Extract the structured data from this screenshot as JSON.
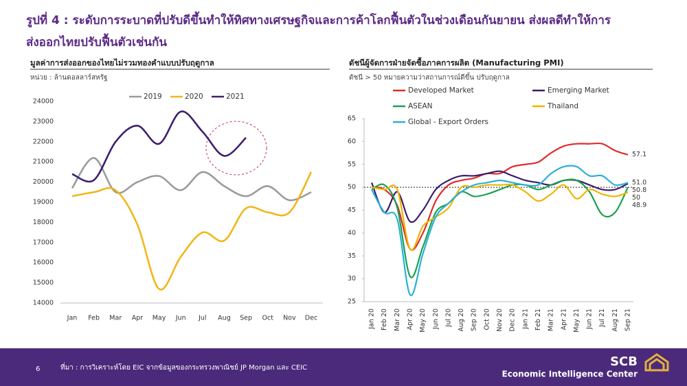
{
  "header": {
    "title_lines": [
      "รูปที่ 4 : ระดับการระบาดที่ปรับดีขึ้นทำให้ทิศทางเศรษฐกิจและการค้าโลกฟื้นตัวในช่วงเดือนกันยายน ส่งผลดีทำให้การ",
      "ส่งออกไทยปรับฟื้นตัวเช่นกัน"
    ]
  },
  "chart_data": [
    {
      "type": "line",
      "smooth": true,
      "legend": "top",
      "title": "มูลค่าการส่งออกของไทยไม่รวมทองคำแบบปรับฤดูกาล",
      "subtitle": "หน่วย : ล้านดอลลาร์สหรัฐ",
      "categories": [
        "Jan",
        "Feb",
        "Mar",
        "Apr",
        "May",
        "Jun",
        "Jul",
        "Aug",
        "Sep",
        "Oct",
        "Nov",
        "Dec"
      ],
      "ylim": [
        14000,
        24000
      ],
      "yticks": [
        14000,
        15000,
        16000,
        17000,
        18000,
        19000,
        20000,
        21000,
        22000,
        23000,
        24000
      ],
      "series": [
        {
          "name": "2019",
          "color": "#9b9b9b",
          "values": [
            19700,
            21200,
            19500,
            20000,
            20300,
            19600,
            20500,
            19800,
            19300,
            19800,
            19100,
            19500
          ]
        },
        {
          "name": "2020",
          "color": "#f2b619",
          "values": [
            19300,
            19500,
            19600,
            17900,
            14700,
            16300,
            17500,
            17100,
            18700,
            18500,
            18500,
            20500
          ]
        },
        {
          "name": "2021",
          "color": "#3d1f6e",
          "values": [
            20400,
            20100,
            22000,
            22800,
            21900,
            23500,
            22500,
            21300,
            22200,
            null,
            null,
            null
          ]
        }
      ]
    },
    {
      "type": "line",
      "smooth": true,
      "legend": "top",
      "title": "ดัชนีผู้จัดการฝ่ายจัดซื้อภาคการผลิต (Manufacturing PMI)",
      "subtitle": "ดัชนี > 50 หมายความว่าสถานการณ์ดีขึ้น ปรับฤดูกาล",
      "categories": [
        "Jan 20",
        "Feb 20",
        "Mar 20",
        "Apr 20",
        "May 20",
        "Jun 20",
        "Jul 20",
        "Aug 20",
        "Sep 20",
        "Oct 20",
        "Nov 20",
        "Dec 20",
        "Jan 21",
        "Feb 21",
        "Mar 21",
        "Apr 21",
        "May 21",
        "Jun 21",
        "Jul 21",
        "Aug 21",
        "Sep 21"
      ],
      "ylim": [
        25,
        65
      ],
      "yticks": [
        25,
        30,
        35,
        40,
        45,
        50,
        55,
        60,
        65
      ],
      "reference_line": 50,
      "series": [
        {
          "name": "Developed Market",
          "color": "#e02b2b",
          "values": [
            50,
            49.5,
            46,
            36.5,
            40,
            47,
            50.5,
            51.5,
            52,
            53,
            53,
            54.5,
            55,
            55.5,
            57.5,
            59,
            59.5,
            59.5,
            59.5,
            58,
            57.1
          ],
          "value_labels": [
            null,
            null,
            null,
            null,
            null,
            null,
            null,
            null,
            null,
            null,
            null,
            null,
            null,
            null,
            null,
            null,
            null,
            null,
            null,
            null,
            "57.1"
          ]
        },
        {
          "name": "Emerging Market",
          "color": "#3b1a6e",
          "values": [
            51,
            44.5,
            49,
            42.5,
            45,
            49.5,
            51.5,
            52.5,
            52.5,
            53,
            53.5,
            52.5,
            51.5,
            51,
            50.5,
            51.5,
            51.5,
            50.5,
            49.5,
            49.5,
            50.8
          ],
          "value_labels": [
            null,
            null,
            null,
            null,
            null,
            null,
            null,
            null,
            null,
            null,
            null,
            null,
            null,
            null,
            null,
            null,
            null,
            null,
            null,
            null,
            "50.8"
          ]
        },
        {
          "name": "ASEAN",
          "color": "#1aa050",
          "values": [
            49.5,
            50.5,
            45.5,
            30.5,
            37,
            44.5,
            46.5,
            49,
            48,
            48.5,
            49.5,
            50.5,
            50.5,
            49.5,
            50.5,
            51.5,
            51.5,
            49,
            44,
            44.5,
            50
          ],
          "value_labels": [
            null,
            null,
            null,
            null,
            null,
            null,
            null,
            null,
            null,
            null,
            null,
            null,
            null,
            null,
            null,
            null,
            null,
            null,
            null,
            null,
            "50"
          ]
        },
        {
          "name": "Thailand",
          "color": "#f0b400",
          "values": [
            50,
            49.5,
            49.5,
            36.5,
            41.5,
            43.5,
            45.5,
            50,
            50,
            50.5,
            50.5,
            50.5,
            49,
            47,
            48.5,
            50.5,
            47.5,
            49.5,
            48.5,
            48,
            48.9
          ],
          "value_labels": [
            null,
            null,
            null,
            null,
            null,
            null,
            null,
            null,
            null,
            null,
            null,
            null,
            null,
            null,
            null,
            null,
            null,
            null,
            null,
            null,
            "48.9"
          ]
        },
        {
          "name": "Global - Export Orders",
          "color": "#2ab0d6",
          "values": [
            49.5,
            44.5,
            43,
            26.5,
            35.5,
            43.5,
            46.5,
            49,
            50.5,
            51,
            51.5,
            51,
            50.5,
            50.5,
            53,
            54.5,
            54.5,
            52.5,
            52.5,
            50.5,
            51.0
          ],
          "value_labels": [
            null,
            null,
            null,
            null,
            null,
            null,
            null,
            null,
            null,
            null,
            null,
            null,
            null,
            null,
            null,
            null,
            null,
            null,
            null,
            null,
            "51.0"
          ]
        }
      ]
    }
  ],
  "footer": {
    "page": "6",
    "source": "ที่มา : การวิเคราะห์โดย EIC จากข้อมูลของกระทรวงพาณิชย์ JP Morgan และ CEIC",
    "logo": "SCB",
    "org": "Economic Intelligence Center"
  }
}
